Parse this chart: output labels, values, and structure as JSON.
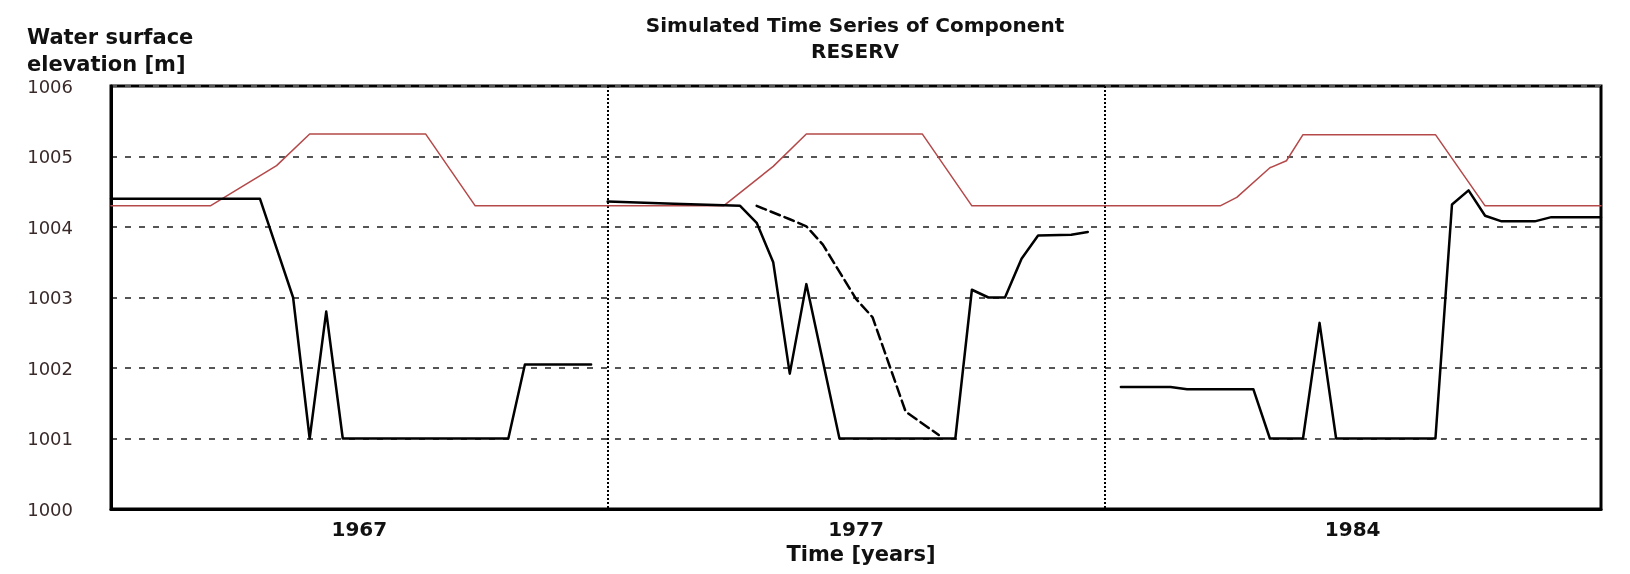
{
  "chart_data": {
    "type": "line",
    "title": "Simulated Time Series of Component",
    "subtitle": "RESERV",
    "xlabel": "Time [years]",
    "ylabel": "Water surface\nelevation [m]",
    "categories": [
      null,
      null,
      null,
      null,
      null,
      null,
      null,
      null,
      null,
      null,
      null,
      null,
      null,
      null,
      null,
      "1967",
      null,
      null,
      null,
      null,
      null,
      null,
      null,
      null,
      null,
      null,
      null,
      null,
      null,
      null,
      null,
      null,
      null,
      null,
      null,
      null,
      null,
      null,
      null,
      null,
      null,
      null,
      null,
      null,
      null,
      "1977",
      null,
      null,
      null,
      null,
      null,
      null,
      null,
      null,
      null,
      null,
      null,
      null,
      null,
      null,
      null,
      null,
      null,
      null,
      null,
      null,
      null,
      null,
      null,
      null,
      null,
      null,
      null,
      null,
      null,
      "1984",
      null,
      null,
      null,
      null,
      null,
      null,
      null,
      null,
      null,
      null,
      null,
      null,
      null,
      null,
      null
    ],
    "ylim": [
      1000,
      1006
    ],
    "yticks": [
      1000,
      1001,
      1002,
      1003,
      1004,
      1005,
      1006
    ],
    "grid": true,
    "marker": "none",
    "line_style": "solid",
    "series": [
      {
        "color": "#b5494a",
        "values": [
          1004.3,
          null,
          null,
          null,
          null,
          null,
          1004.3,
          null,
          null,
          null,
          1004.87,
          null,
          1005.32,
          null,
          null,
          null,
          null,
          null,
          null,
          1005.32,
          null,
          null,
          1004.3,
          null,
          null,
          null,
          null,
          null,
          null,
          1004.3,
          1004.3,
          null,
          null,
          null,
          null,
          null,
          null,
          1004.3,
          null,
          null,
          1004.86,
          null,
          1005.32,
          null,
          null,
          null,
          null,
          null,
          null,
          1005.32,
          null,
          null,
          1004.3,
          null,
          null,
          null,
          null,
          null,
          null,
          null,
          1004.3,
          null,
          null,
          null,
          null,
          null,
          null,
          1004.3,
          1004.42,
          null,
          1004.84,
          1004.94,
          1005.31,
          null,
          null,
          null,
          null,
          null,
          null,
          null,
          1005.31,
          null,
          null,
          1004.3,
          null,
          null,
          null,
          null,
          null,
          null,
          1004.3
        ]
      },
      {
        "color": "#000000",
        "values": [
          1004.4,
          null,
          null,
          null,
          null,
          null,
          null,
          null,
          null,
          1004.4,
          null,
          1003,
          1001,
          1002.8,
          1001,
          null,
          null,
          null,
          null,
          null,
          null,
          null,
          null,
          null,
          1001,
          1002.05,
          null,
          null,
          null,
          1002.05,
          null,
          null,
          null,
          null,
          null,
          null,
          null,
          null,
          null,
          null,
          null,
          null,
          null,
          null,
          null,
          null,
          null,
          null,
          null,
          null,
          null,
          null,
          null,
          null,
          null,
          null,
          null,
          null,
          null,
          null,
          null,
          null,
          null,
          null,
          null,
          null,
          null,
          null,
          null,
          null,
          null,
          null,
          null,
          null,
          null,
          null,
          null,
          null,
          null,
          null,
          null,
          null,
          null,
          null,
          null,
          null,
          null,
          null,
          null,
          null,
          null
        ]
      },
      {
        "color": "#000000",
        "values": [
          null,
          null,
          null,
          null,
          null,
          null,
          null,
          null,
          null,
          null,
          null,
          null,
          null,
          null,
          null,
          null,
          null,
          null,
          null,
          null,
          null,
          null,
          null,
          null,
          null,
          null,
          null,
          null,
          null,
          null,
          1004.36,
          null,
          null,
          null,
          1004.33,
          null,
          null,
          null,
          1004.3,
          1004.06,
          1003.5,
          1001.92,
          1003.19,
          null,
          1001,
          null,
          null,
          null,
          null,
          null,
          null,
          1001,
          1003.11,
          1003,
          1003,
          1003.55,
          1003.88,
          null,
          1003.89,
          1003.93,
          null,
          null,
          null,
          null,
          null,
          null,
          null,
          null,
          null,
          null,
          null,
          null,
          null,
          null,
          null,
          null,
          null,
          null,
          null,
          null,
          null,
          null,
          null,
          null,
          null,
          null,
          null,
          null,
          null,
          null,
          null
        ]
      },
      {
        "color": "#000000",
        "values": [
          null,
          null,
          null,
          null,
          null,
          null,
          null,
          null,
          null,
          null,
          null,
          null,
          null,
          null,
          null,
          null,
          null,
          null,
          null,
          null,
          null,
          null,
          null,
          null,
          null,
          null,
          null,
          null,
          null,
          null,
          null,
          null,
          null,
          null,
          null,
          null,
          null,
          null,
          null,
          null,
          null,
          null,
          null,
          null,
          null,
          null,
          null,
          null,
          null,
          null,
          null,
          null,
          null,
          null,
          null,
          null,
          null,
          null,
          null,
          null,
          null,
          1001.73,
          null,
          null,
          1001.73,
          1001.7,
          null,
          null,
          null,
          1001.7,
          1001,
          null,
          1001,
          1002.64,
          1001,
          null,
          null,
          null,
          null,
          null,
          1001,
          1004.32,
          1004.52,
          1004.16,
          1004.08,
          null,
          1004.08,
          1004.14,
          null,
          null,
          1004.14
        ]
      },
      {
        "color": "#000000",
        "line_style": "dashed",
        "values": [
          null,
          null,
          null,
          null,
          null,
          null,
          null,
          null,
          null,
          null,
          null,
          null,
          null,
          null,
          null,
          null,
          null,
          null,
          null,
          null,
          null,
          null,
          null,
          null,
          null,
          null,
          null,
          null,
          null,
          null,
          null,
          null,
          null,
          null,
          null,
          null,
          null,
          null,
          null,
          1004.3,
          null,
          1004.11,
          1004.01,
          1003.75,
          null,
          1002.98,
          1002.72,
          1002.05,
          1001.38,
          null,
          1001.05,
          null,
          null,
          null,
          null,
          null,
          null,
          null,
          null,
          null,
          null,
          null,
          null,
          null,
          null,
          null,
          null,
          null,
          null,
          null,
          null,
          null,
          null,
          null,
          null,
          null,
          null,
          null,
          null,
          null,
          null,
          null,
          null,
          null,
          null,
          null,
          null,
          null,
          null,
          null,
          null
        ]
      }
    ]
  }
}
